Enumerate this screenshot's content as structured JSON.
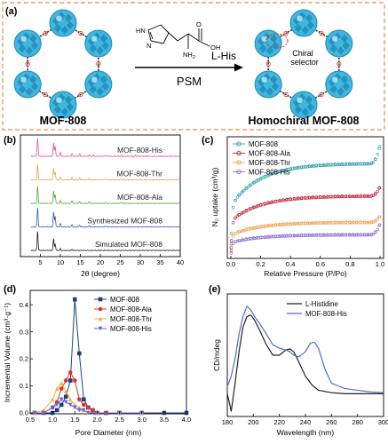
{
  "panel_labels": {
    "a": "(a)",
    "b": "(b)",
    "c": "(c)",
    "d": "(d)",
    "e": "(e)"
  },
  "schematic": {
    "left_label": "MOF-808",
    "right_label": "Homochiral MOF-808",
    "reagent": "L-His",
    "process": "PSM",
    "selector_label_1": "Chiral",
    "selector_label_2": "selector",
    "molecule_labels": {
      "nh": "HN",
      "n": "N",
      "o": "O",
      "oh": "OH",
      "nh2": "NH",
      "nh2_sub": "2"
    },
    "colors": {
      "frame": "#e8a06a",
      "cluster": "#3fb7e0",
      "cluster_dark": "#1f86b3",
      "linker": "#333333",
      "ring": "#e0302a"
    }
  },
  "chart_data": [
    {
      "id": "b",
      "type": "line",
      "title": "",
      "xlabel": "2θ (degree)",
      "ylabel": "",
      "xlim": [
        0,
        40
      ],
      "xticks": [
        5,
        10,
        15,
        20,
        25,
        30,
        35,
        40
      ],
      "series": [
        {
          "name": "MOF-808-His",
          "color": "#e8579a",
          "offset": 4,
          "peaks": [
            [
              4.3,
              0.85
            ],
            [
              8.3,
              0.65
            ],
            [
              8.7,
              0.45
            ],
            [
              10.0,
              0.2
            ],
            [
              12.9,
              0.12
            ],
            [
              14.8,
              0.1
            ],
            [
              17.2,
              0.07
            ],
            [
              18.3,
              0.06
            ],
            [
              21.3,
              0.05
            ],
            [
              25.2,
              0.06
            ],
            [
              28.8,
              0.05
            ]
          ]
        },
        {
          "name": "MOF-808-Thr",
          "color": "#f0a050",
          "offset": 3,
          "peaks": [
            [
              4.3,
              0.7
            ],
            [
              8.3,
              0.55
            ],
            [
              8.7,
              0.35
            ],
            [
              10.0,
              0.15
            ],
            [
              12.9,
              0.1
            ],
            [
              14.8,
              0.08
            ],
            [
              17.2,
              0.06
            ],
            [
              21.3,
              0.05
            ],
            [
              25.2,
              0.05
            ]
          ]
        },
        {
          "name": "MOF-808-Ala",
          "color": "#5bab3b",
          "offset": 2,
          "peaks": [
            [
              4.3,
              0.8
            ],
            [
              8.3,
              0.6
            ],
            [
              8.7,
              0.4
            ],
            [
              10.0,
              0.15
            ],
            [
              12.9,
              0.1
            ],
            [
              14.8,
              0.08
            ],
            [
              17.2,
              0.06
            ],
            [
              21.3,
              0.05
            ],
            [
              25.2,
              0.05
            ]
          ]
        },
        {
          "name": "Synthesized MOF-808",
          "color": "#3a5ec7",
          "offset": 1,
          "peaks": [
            [
              4.3,
              0.9
            ],
            [
              8.3,
              0.7
            ],
            [
              8.7,
              0.5
            ],
            [
              10.0,
              0.15
            ],
            [
              12.9,
              0.1
            ],
            [
              14.8,
              0.08
            ],
            [
              17.2,
              0.05
            ],
            [
              21.3,
              0.04
            ]
          ]
        },
        {
          "name": "Simulated MOF-808",
          "color": "#222222",
          "offset": 0,
          "peaks": [
            [
              4.3,
              0.9
            ],
            [
              8.3,
              0.55
            ],
            [
              8.7,
              0.3
            ],
            [
              10.0,
              0.08
            ],
            [
              12.9,
              0.05
            ]
          ]
        }
      ]
    },
    {
      "id": "c",
      "type": "scatter",
      "title": "",
      "xlabel": "Relative Pressure (P/Po)",
      "ylabel": "N₂ uptake (cm³/g)",
      "xlim": [
        0,
        1
      ],
      "xticks": [
        0.0,
        0.2,
        0.4,
        0.6,
        0.8,
        1.0
      ],
      "tick_labels": [
        "0.0",
        "0.2",
        "0.4",
        "0.6",
        "0.8",
        "1.0"
      ],
      "ylim": [
        0,
        750
      ],
      "legend": "top-left",
      "series": [
        {
          "name": "MOF-808",
          "color": "#2f9fb0",
          "marker": "circle",
          "plateau": 600,
          "knee": 330,
          "top": 720
        },
        {
          "name": "MOF-808-Ala",
          "color": "#c0243a",
          "marker": "circle",
          "plateau": 390,
          "knee": 230,
          "top": 450
        },
        {
          "name": "MOF-808-Thr",
          "color": "#f0a050",
          "marker": "circle",
          "plateau": 220,
          "knee": 140,
          "top": 260
        },
        {
          "name": "MOF-808-His",
          "color": "#8a6fd0",
          "marker": "circle",
          "plateau": 140,
          "knee": 90,
          "top": 210
        }
      ]
    },
    {
      "id": "d",
      "type": "line",
      "title": "",
      "xlabel": "Pore Diameter (nm)",
      "ylabel": "Incremental Volume (cm³·g⁻¹)",
      "xlim": [
        0.5,
        4.0
      ],
      "xticks": [
        0.5,
        1.0,
        1.5,
        2.0,
        2.5,
        3.0,
        3.5,
        4.0
      ],
      "tick_labels": [
        "0.5",
        "1.0",
        "1.5",
        "2.0",
        "2.5",
        "3.0",
        "3.5",
        "4.0"
      ],
      "ylim": [
        0,
        0.45
      ],
      "yticks": [
        0.0,
        0.1,
        0.2,
        0.3,
        0.4
      ],
      "ytick_labels": [
        "0.0",
        "0.1",
        "0.2",
        "0.3",
        "0.4"
      ],
      "legend": "top-right",
      "series": [
        {
          "name": "MOF-808",
          "color": "#1f3f7a",
          "marker": "square",
          "x": [
            0.6,
            0.8,
            1.0,
            1.1,
            1.2,
            1.3,
            1.4,
            1.5,
            1.6,
            1.7,
            1.8,
            1.9,
            2.0,
            2.2,
            2.5,
            3.0,
            3.5,
            4.0
          ],
          "y": [
            0.0,
            0.0,
            0.0,
            0.01,
            0.03,
            0.06,
            0.12,
            0.42,
            0.22,
            0.05,
            0.02,
            0.01,
            0.0,
            0.0,
            0.0,
            0.0,
            0.0,
            0.0
          ]
        },
        {
          "name": "MOF-808-Ala",
          "color": "#e0302a",
          "marker": "circle",
          "x": [
            0.6,
            0.8,
            1.0,
            1.1,
            1.2,
            1.3,
            1.4,
            1.5,
            1.6,
            1.7,
            1.8,
            1.9,
            2.0,
            2.2,
            2.5,
            3.0
          ],
          "y": [
            0.0,
            0.0,
            0.02,
            0.04,
            0.09,
            0.12,
            0.15,
            0.12,
            0.05,
            0.03,
            0.02,
            0.01,
            0.0,
            0.0,
            0.0,
            0.0
          ]
        },
        {
          "name": "MOF-808-Thr",
          "color": "#f2b035",
          "marker": "triangle",
          "x": [
            0.6,
            0.8,
            1.0,
            1.1,
            1.2,
            1.3,
            1.4,
            1.5,
            1.6,
            1.7,
            1.8,
            2.0,
            2.5,
            3.0
          ],
          "y": [
            0.0,
            0.01,
            0.05,
            0.09,
            0.11,
            0.08,
            0.05,
            0.03,
            0.02,
            0.01,
            0.0,
            0.0,
            0.0,
            0.0
          ]
        },
        {
          "name": "MOF-808-His",
          "color": "#5a6bdc",
          "marker": "triangle-down",
          "x": [
            0.6,
            0.8,
            1.0,
            1.1,
            1.2,
            1.3,
            1.4,
            1.5,
            1.6,
            1.7,
            1.8,
            2.0,
            2.5,
            3.0
          ],
          "y": [
            0.0,
            0.0,
            0.02,
            0.03,
            0.05,
            0.04,
            0.03,
            0.02,
            0.01,
            0.01,
            0.0,
            0.0,
            0.0,
            0.0
          ]
        }
      ]
    },
    {
      "id": "e",
      "type": "line",
      "title": "",
      "xlabel": "Wavelength (nm)",
      "ylabel": "CD/mdeg",
      "xlim": [
        180,
        300
      ],
      "xticks": [
        180,
        200,
        220,
        240,
        260,
        280,
        300
      ],
      "legend": "top-right",
      "series": [
        {
          "name": "L-Histidine",
          "color": "#222222",
          "x": [
            180,
            183,
            186,
            189,
            192,
            195,
            198,
            201,
            205,
            210,
            215,
            220,
            225,
            228,
            231,
            235,
            240,
            245,
            250,
            260,
            270,
            280,
            290,
            300
          ],
          "y": [
            0,
            -5,
            3,
            12,
            19,
            22,
            22.5,
            21,
            18,
            14,
            11,
            11,
            12.5,
            12.8,
            12,
            9,
            5,
            2.5,
            1,
            0.3,
            0,
            0,
            0,
            0
          ]
        },
        {
          "name": "MOF-808-His",
          "color": "#4a6fd0",
          "x": [
            180,
            183,
            186,
            189,
            192,
            195,
            198,
            201,
            205,
            210,
            215,
            220,
            225,
            228,
            231,
            235,
            240,
            244,
            247,
            250,
            255,
            260,
            270,
            280,
            290,
            300
          ],
          "y": [
            2,
            5,
            10,
            17,
            22,
            25,
            24,
            22,
            20,
            17,
            14,
            13,
            12.5,
            12,
            11,
            10.5,
            12,
            14.5,
            14.7,
            13,
            7,
            3,
            1.5,
            1,
            0.5,
            0.3
          ]
        }
      ]
    }
  ]
}
